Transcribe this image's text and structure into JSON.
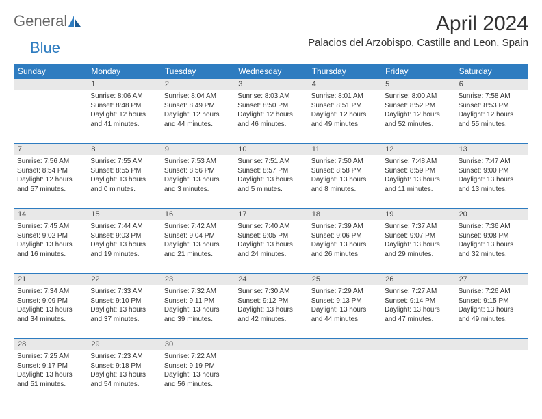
{
  "logo": {
    "text1": "General",
    "text2": "Blue"
  },
  "title": "April 2024",
  "location": "Palacios del Arzobispo, Castille and Leon, Spain",
  "colors": {
    "header_bg": "#2e7cc0",
    "header_text": "#ffffff",
    "daynum_bg": "#e8e8e8",
    "border": "#2e7cc0",
    "text": "#333333"
  },
  "day_names": [
    "Sunday",
    "Monday",
    "Tuesday",
    "Wednesday",
    "Thursday",
    "Friday",
    "Saturday"
  ],
  "weeks": [
    [
      {
        "n": "",
        "sr": "",
        "ss": "",
        "d1": "",
        "d2": ""
      },
      {
        "n": "1",
        "sr": "Sunrise: 8:06 AM",
        "ss": "Sunset: 8:48 PM",
        "d1": "Daylight: 12 hours",
        "d2": "and 41 minutes."
      },
      {
        "n": "2",
        "sr": "Sunrise: 8:04 AM",
        "ss": "Sunset: 8:49 PM",
        "d1": "Daylight: 12 hours",
        "d2": "and 44 minutes."
      },
      {
        "n": "3",
        "sr": "Sunrise: 8:03 AM",
        "ss": "Sunset: 8:50 PM",
        "d1": "Daylight: 12 hours",
        "d2": "and 46 minutes."
      },
      {
        "n": "4",
        "sr": "Sunrise: 8:01 AM",
        "ss": "Sunset: 8:51 PM",
        "d1": "Daylight: 12 hours",
        "d2": "and 49 minutes."
      },
      {
        "n": "5",
        "sr": "Sunrise: 8:00 AM",
        "ss": "Sunset: 8:52 PM",
        "d1": "Daylight: 12 hours",
        "d2": "and 52 minutes."
      },
      {
        "n": "6",
        "sr": "Sunrise: 7:58 AM",
        "ss": "Sunset: 8:53 PM",
        "d1": "Daylight: 12 hours",
        "d2": "and 55 minutes."
      }
    ],
    [
      {
        "n": "7",
        "sr": "Sunrise: 7:56 AM",
        "ss": "Sunset: 8:54 PM",
        "d1": "Daylight: 12 hours",
        "d2": "and 57 minutes."
      },
      {
        "n": "8",
        "sr": "Sunrise: 7:55 AM",
        "ss": "Sunset: 8:55 PM",
        "d1": "Daylight: 13 hours",
        "d2": "and 0 minutes."
      },
      {
        "n": "9",
        "sr": "Sunrise: 7:53 AM",
        "ss": "Sunset: 8:56 PM",
        "d1": "Daylight: 13 hours",
        "d2": "and 3 minutes."
      },
      {
        "n": "10",
        "sr": "Sunrise: 7:51 AM",
        "ss": "Sunset: 8:57 PM",
        "d1": "Daylight: 13 hours",
        "d2": "and 5 minutes."
      },
      {
        "n": "11",
        "sr": "Sunrise: 7:50 AM",
        "ss": "Sunset: 8:58 PM",
        "d1": "Daylight: 13 hours",
        "d2": "and 8 minutes."
      },
      {
        "n": "12",
        "sr": "Sunrise: 7:48 AM",
        "ss": "Sunset: 8:59 PM",
        "d1": "Daylight: 13 hours",
        "d2": "and 11 minutes."
      },
      {
        "n": "13",
        "sr": "Sunrise: 7:47 AM",
        "ss": "Sunset: 9:00 PM",
        "d1": "Daylight: 13 hours",
        "d2": "and 13 minutes."
      }
    ],
    [
      {
        "n": "14",
        "sr": "Sunrise: 7:45 AM",
        "ss": "Sunset: 9:02 PM",
        "d1": "Daylight: 13 hours",
        "d2": "and 16 minutes."
      },
      {
        "n": "15",
        "sr": "Sunrise: 7:44 AM",
        "ss": "Sunset: 9:03 PM",
        "d1": "Daylight: 13 hours",
        "d2": "and 19 minutes."
      },
      {
        "n": "16",
        "sr": "Sunrise: 7:42 AM",
        "ss": "Sunset: 9:04 PM",
        "d1": "Daylight: 13 hours",
        "d2": "and 21 minutes."
      },
      {
        "n": "17",
        "sr": "Sunrise: 7:40 AM",
        "ss": "Sunset: 9:05 PM",
        "d1": "Daylight: 13 hours",
        "d2": "and 24 minutes."
      },
      {
        "n": "18",
        "sr": "Sunrise: 7:39 AM",
        "ss": "Sunset: 9:06 PM",
        "d1": "Daylight: 13 hours",
        "d2": "and 26 minutes."
      },
      {
        "n": "19",
        "sr": "Sunrise: 7:37 AM",
        "ss": "Sunset: 9:07 PM",
        "d1": "Daylight: 13 hours",
        "d2": "and 29 minutes."
      },
      {
        "n": "20",
        "sr": "Sunrise: 7:36 AM",
        "ss": "Sunset: 9:08 PM",
        "d1": "Daylight: 13 hours",
        "d2": "and 32 minutes."
      }
    ],
    [
      {
        "n": "21",
        "sr": "Sunrise: 7:34 AM",
        "ss": "Sunset: 9:09 PM",
        "d1": "Daylight: 13 hours",
        "d2": "and 34 minutes."
      },
      {
        "n": "22",
        "sr": "Sunrise: 7:33 AM",
        "ss": "Sunset: 9:10 PM",
        "d1": "Daylight: 13 hours",
        "d2": "and 37 minutes."
      },
      {
        "n": "23",
        "sr": "Sunrise: 7:32 AM",
        "ss": "Sunset: 9:11 PM",
        "d1": "Daylight: 13 hours",
        "d2": "and 39 minutes."
      },
      {
        "n": "24",
        "sr": "Sunrise: 7:30 AM",
        "ss": "Sunset: 9:12 PM",
        "d1": "Daylight: 13 hours",
        "d2": "and 42 minutes."
      },
      {
        "n": "25",
        "sr": "Sunrise: 7:29 AM",
        "ss": "Sunset: 9:13 PM",
        "d1": "Daylight: 13 hours",
        "d2": "and 44 minutes."
      },
      {
        "n": "26",
        "sr": "Sunrise: 7:27 AM",
        "ss": "Sunset: 9:14 PM",
        "d1": "Daylight: 13 hours",
        "d2": "and 47 minutes."
      },
      {
        "n": "27",
        "sr": "Sunrise: 7:26 AM",
        "ss": "Sunset: 9:15 PM",
        "d1": "Daylight: 13 hours",
        "d2": "and 49 minutes."
      }
    ],
    [
      {
        "n": "28",
        "sr": "Sunrise: 7:25 AM",
        "ss": "Sunset: 9:17 PM",
        "d1": "Daylight: 13 hours",
        "d2": "and 51 minutes."
      },
      {
        "n": "29",
        "sr": "Sunrise: 7:23 AM",
        "ss": "Sunset: 9:18 PM",
        "d1": "Daylight: 13 hours",
        "d2": "and 54 minutes."
      },
      {
        "n": "30",
        "sr": "Sunrise: 7:22 AM",
        "ss": "Sunset: 9:19 PM",
        "d1": "Daylight: 13 hours",
        "d2": "and 56 minutes."
      },
      {
        "n": "",
        "sr": "",
        "ss": "",
        "d1": "",
        "d2": ""
      },
      {
        "n": "",
        "sr": "",
        "ss": "",
        "d1": "",
        "d2": ""
      },
      {
        "n": "",
        "sr": "",
        "ss": "",
        "d1": "",
        "d2": ""
      },
      {
        "n": "",
        "sr": "",
        "ss": "",
        "d1": "",
        "d2": ""
      }
    ]
  ]
}
